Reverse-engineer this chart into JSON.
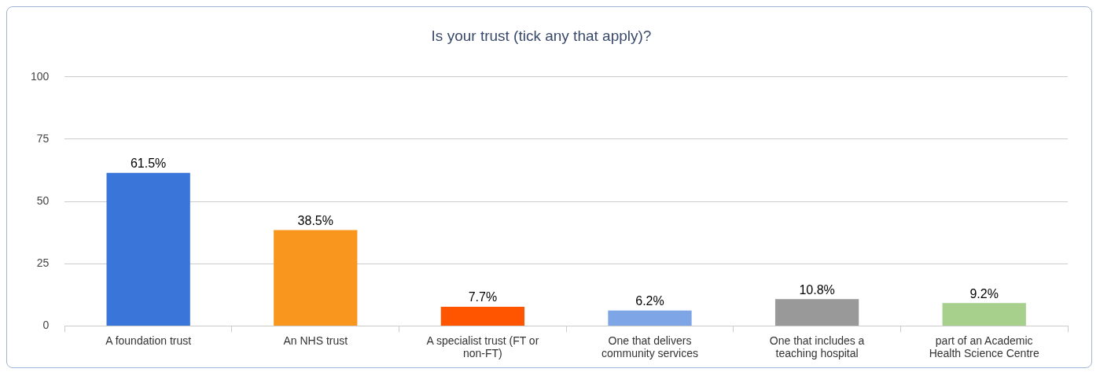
{
  "chart_data": {
    "type": "bar",
    "title": "Is your trust (tick any that apply)?",
    "categories": [
      "A foundation trust",
      "An NHS trust",
      "A specialist trust (FT or non-FT)",
      "One that delivers community services",
      "One that includes a teaching hospital",
      "part of an Academic Health Science Centre"
    ],
    "values": [
      61.5,
      38.5,
      7.7,
      6.2,
      10.8,
      9.2
    ],
    "colors": [
      "#3a75d9",
      "#f9961e",
      "#ff5500",
      "#7ea6e6",
      "#999999",
      "#a6d08c"
    ],
    "value_labels": [
      "61.5%",
      "38.5%",
      "7.7%",
      "6.2%",
      "10.8%",
      "9.2%"
    ],
    "ylim": [
      0,
      100
    ],
    "yticks": [
      0,
      25,
      50,
      75,
      100
    ],
    "grid": "y",
    "legend": false
  }
}
